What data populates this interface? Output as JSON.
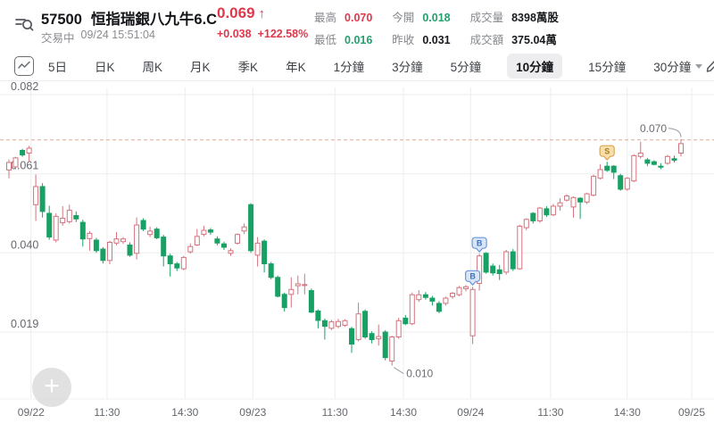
{
  "colors": {
    "red": "#e0384b",
    "green": "#23a06e",
    "dark": "#17191d"
  },
  "header": {
    "code": "57500",
    "name": "恒指瑞銀八九牛6.C",
    "price": "0.069",
    "arrow": "↑",
    "change": "+0.038",
    "change_pct": "+122.58%",
    "status_label": "交易中",
    "datetime": "09/24 15:51:04",
    "stats": [
      {
        "label": "最高",
        "value": "0.070",
        "color": "red"
      },
      {
        "label": "今開",
        "value": "0.018",
        "color": "green"
      },
      {
        "label": "成交量",
        "value": "8398萬股",
        "color": "dark"
      },
      {
        "label": "最低",
        "value": "0.016",
        "color": "green"
      },
      {
        "label": "昨收",
        "value": "0.031",
        "color": "dark"
      },
      {
        "label": "成交額",
        "value": "375.04萬",
        "color": "dark"
      }
    ]
  },
  "tabs": {
    "items": [
      {
        "label": "5日"
      },
      {
        "label": "日K"
      },
      {
        "label": "周K"
      },
      {
        "label": "月K"
      },
      {
        "label": "季K"
      },
      {
        "label": "年K"
      },
      {
        "label": "1分鐘"
      },
      {
        "label": "3分鐘"
      },
      {
        "label": "5分鐘"
      },
      {
        "label": "10分鐘",
        "active": true
      },
      {
        "label": "15分鐘"
      },
      {
        "label": "30分鐘",
        "caret": true
      }
    ]
  },
  "chart_data": {
    "type": "candlestick",
    "interval_selected": "10分鐘",
    "ylim": [
      0.008,
      0.085
    ],
    "y_ticks": [
      0.082,
      0.061,
      0.04,
      0.019
    ],
    "price_line": {
      "value": 0.07
    },
    "x_labels": [
      {
        "text": "09/22",
        "pos": 3.3
      },
      {
        "text": "11:30",
        "pos": 14.6
      },
      {
        "text": "14:30",
        "pos": 26.2
      },
      {
        "text": "09/23",
        "pos": 36.3
      },
      {
        "text": "11:30",
        "pos": 48.5
      },
      {
        "text": "14:30",
        "pos": 58.7
      },
      {
        "text": "09/24",
        "pos": 68.7
      },
      {
        "text": "11:30",
        "pos": 80.6
      },
      {
        "text": "14:30",
        "pos": 92.0
      },
      {
        "text": "09/25",
        "pos": 101.6
      }
    ],
    "candles": [
      [
        0.062,
        0.0648,
        0.0598,
        0.064
      ],
      [
        0.0628,
        0.0655,
        0.0622,
        0.0652
      ],
      [
        0.0672,
        0.0676,
        0.0655,
        0.066
      ],
      [
        0.0665,
        0.0684,
        0.0642,
        0.0678
      ],
      [
        0.0528,
        0.0608,
        0.0485,
        0.0576
      ],
      [
        0.0576,
        0.0585,
        0.0494,
        0.051
      ],
      [
        0.0505,
        0.0525,
        0.0435,
        0.0442
      ],
      [
        0.0434,
        0.0505,
        0.0428,
        0.0497
      ],
      [
        0.048,
        0.0524,
        0.0472,
        0.0492
      ],
      [
        0.0483,
        0.0528,
        0.0478,
        0.0513
      ],
      [
        0.0499,
        0.051,
        0.0482,
        0.049
      ],
      [
        0.0481,
        0.0488,
        0.0417,
        0.0437
      ],
      [
        0.0438,
        0.0458,
        0.0406,
        0.0452
      ],
      [
        0.0434,
        0.044,
        0.04,
        0.0406
      ],
      [
        0.041,
        0.0415,
        0.0372,
        0.038
      ],
      [
        0.038,
        0.0432,
        0.037,
        0.0428
      ],
      [
        0.0426,
        0.0455,
        0.042,
        0.0437
      ],
      [
        0.043,
        0.0442,
        0.0424,
        0.0437
      ],
      [
        0.0421,
        0.0428,
        0.039,
        0.0394
      ],
      [
        0.0399,
        0.0494,
        0.0383,
        0.0474
      ],
      [
        0.0486,
        0.0492,
        0.0458,
        0.0463
      ],
      [
        0.0449,
        0.047,
        0.0442,
        0.0458
      ],
      [
        0.0463,
        0.0468,
        0.0436,
        0.044
      ],
      [
        0.0442,
        0.0448,
        0.0364,
        0.0392
      ],
      [
        0.0392,
        0.0398,
        0.0337,
        0.0371
      ],
      [
        0.0371,
        0.0376,
        0.0352,
        0.036
      ],
      [
        0.0358,
        0.0392,
        0.0354,
        0.0388
      ],
      [
        0.0403,
        0.0425,
        0.0398,
        0.0417
      ],
      [
        0.0421,
        0.0463,
        0.0418,
        0.0444
      ],
      [
        0.0449,
        0.0472,
        0.0444,
        0.046
      ],
      [
        0.0461,
        0.0466,
        0.0448,
        0.0455
      ],
      [
        0.0437,
        0.0444,
        0.042,
        0.0426
      ],
      [
        0.0424,
        0.043,
        0.0408,
        0.0415
      ],
      [
        0.0399,
        0.0412,
        0.0392,
        0.0406
      ],
      [
        0.0426,
        0.0452,
        0.0422,
        0.0449
      ],
      [
        0.0458,
        0.0478,
        0.045,
        0.0469
      ],
      [
        0.0528,
        0.0532,
        0.04,
        0.0406
      ],
      [
        0.0394,
        0.0442,
        0.0364,
        0.0426
      ],
      [
        0.0431,
        0.0436,
        0.0348,
        0.0371
      ],
      [
        0.0371,
        0.0376,
        0.033,
        0.0335
      ],
      [
        0.0335,
        0.034,
        0.0282,
        0.0285
      ],
      [
        0.029,
        0.0295,
        0.0244,
        0.0255
      ],
      [
        0.029,
        0.0335,
        0.0255,
        0.0303
      ],
      [
        0.0313,
        0.034,
        0.029,
        0.0318
      ],
      [
        0.0314,
        0.0345,
        0.029,
        0.0316
      ],
      [
        0.03,
        0.0305,
        0.024,
        0.0243
      ],
      [
        0.0246,
        0.025,
        0.02,
        0.0221
      ],
      [
        0.022,
        0.0226,
        0.017,
        0.0205
      ],
      [
        0.02,
        0.0222,
        0.0195,
        0.0217
      ],
      [
        0.0205,
        0.0225,
        0.02,
        0.0218
      ],
      [
        0.0208,
        0.0224,
        0.0204,
        0.022
      ],
      [
        0.0199,
        0.0204,
        0.0135,
        0.0158
      ],
      [
        0.017,
        0.0268,
        0.0165,
        0.0238
      ],
      [
        0.0245,
        0.025,
        0.0172,
        0.0177
      ],
      [
        0.0186,
        0.0192,
        0.016,
        0.017
      ],
      [
        0.0172,
        0.021,
        0.0154,
        0.0178
      ],
      [
        0.019,
        0.0195,
        0.0115,
        0.0122
      ],
      [
        0.0113,
        0.018,
        0.0101,
        0.0177
      ],
      [
        0.0177,
        0.0228,
        0.0172,
        0.022
      ],
      [
        0.0227,
        0.0235,
        0.0208,
        0.0212
      ],
      [
        0.0212,
        0.0295,
        0.0208,
        0.0289
      ],
      [
        0.0276,
        0.0301,
        0.027,
        0.0289
      ],
      [
        0.0289,
        0.0296,
        0.0276,
        0.0282
      ],
      [
        0.028,
        0.0286,
        0.026,
        0.0272
      ],
      [
        0.0266,
        0.0272,
        0.024,
        0.0245
      ],
      [
        0.0266,
        0.0284,
        0.026,
        0.028
      ],
      [
        0.0284,
        0.0296,
        0.0278,
        0.0293
      ],
      [
        0.0289,
        0.0312,
        0.0285,
        0.0308
      ],
      [
        0.0305,
        0.0315,
        0.0298,
        0.031
      ],
      [
        0.018,
        0.031,
        0.0158,
        0.0303
      ],
      [
        0.0319,
        0.0398,
        0.03,
        0.0392
      ],
      [
        0.0399,
        0.0402,
        0.0345,
        0.0349
      ],
      [
        0.0365,
        0.0372,
        0.034,
        0.0347
      ],
      [
        0.0355,
        0.0368,
        0.0328,
        0.0345
      ],
      [
        0.0349,
        0.0408,
        0.0342,
        0.0403
      ],
      [
        0.0403,
        0.041,
        0.0352,
        0.0358
      ],
      [
        0.0358,
        0.0475,
        0.0355,
        0.0471
      ],
      [
        0.0467,
        0.0492,
        0.046,
        0.0489
      ],
      [
        0.0505,
        0.0508,
        0.0478,
        0.0485
      ],
      [
        0.0485,
        0.0522,
        0.048,
        0.0519
      ],
      [
        0.0517,
        0.0524,
        0.0495,
        0.0501
      ],
      [
        0.0501,
        0.053,
        0.0498,
        0.0524
      ],
      [
        0.0524,
        0.0545,
        0.0512,
        0.0533
      ],
      [
        0.054,
        0.0556,
        0.0536,
        0.0551
      ],
      [
        0.0522,
        0.055,
        0.0494,
        0.0547
      ],
      [
        0.0545,
        0.0548,
        0.049,
        0.0535
      ],
      [
        0.0535,
        0.056,
        0.053,
        0.0557
      ],
      [
        0.0553,
        0.0608,
        0.055,
        0.0603
      ],
      [
        0.0598,
        0.0635,
        0.0595,
        0.0621
      ],
      [
        0.063,
        0.0642,
        0.0615,
        0.0619
      ],
      [
        0.063,
        0.0633,
        0.0596,
        0.0614
      ],
      [
        0.0605,
        0.061,
        0.0565,
        0.0569
      ],
      [
        0.0569,
        0.0601,
        0.0565,
        0.0598
      ],
      [
        0.0591,
        0.0662,
        0.0588,
        0.0658
      ],
      [
        0.0656,
        0.0695,
        0.065,
        0.0665
      ],
      [
        0.0647,
        0.0652,
        0.063,
        0.0638
      ],
      [
        0.0642,
        0.0646,
        0.0632,
        0.0635
      ],
      [
        0.063,
        0.0638,
        0.0622,
        0.0628
      ],
      [
        0.0638,
        0.066,
        0.0634,
        0.0656
      ],
      [
        0.065,
        0.0658,
        0.064,
        0.0646
      ],
      [
        0.0665,
        0.0702,
        0.0656,
        0.069
      ]
    ],
    "markers": [
      {
        "index": 69,
        "label": "B"
      },
      {
        "index": 70,
        "label": "B"
      },
      {
        "index": 89,
        "label": "S"
      }
    ],
    "annotations": {
      "low": {
        "index": 57,
        "text": "0.010"
      },
      "high": {
        "index": 100,
        "text": "0.070"
      }
    },
    "colors": {
      "up": "#d4737d",
      "down": "#18a164",
      "price_line": "#d9ad92",
      "grid": "#ededed",
      "axis_text": "#64676d",
      "markers": {
        "B": {
          "fill": "#d8e7f8",
          "stroke": "#6e96da",
          "text": "#3b6fc4"
        },
        "S": {
          "fill": "#f8dfae",
          "stroke": "#dda752",
          "text": "#a97c1c"
        }
      }
    }
  }
}
